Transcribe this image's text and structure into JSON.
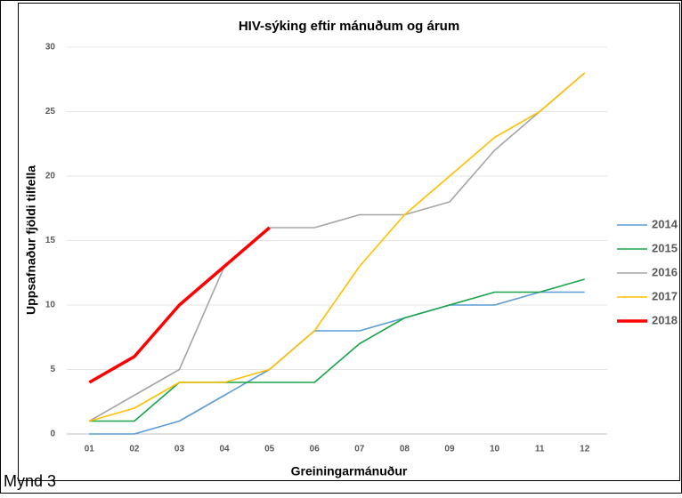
{
  "chart_data": {
    "type": "line",
    "title": "HIV-sýking eftir mánuðum og árum",
    "x_label": "Greiningarmánuður",
    "y_label": "Uppsafnaður fjöldi tilfella",
    "caption": "Mynd 3",
    "categories": [
      "01",
      "02",
      "03",
      "04",
      "05",
      "06",
      "07",
      "08",
      "09",
      "10",
      "11",
      "12"
    ],
    "ylim": [
      0,
      30
    ],
    "yticks": [
      0,
      5,
      10,
      15,
      20,
      25,
      30
    ],
    "grid": true,
    "legend": "right",
    "series": [
      {
        "name": "2014",
        "color": "#5b9bd5",
        "values": [
          0,
          0,
          1,
          3,
          5,
          8,
          8,
          9,
          10,
          10,
          11,
          11
        ]
      },
      {
        "name": "2015",
        "color": "#1aa34a",
        "values": [
          1,
          1,
          4,
          4,
          4,
          4,
          7,
          9,
          10,
          11,
          11,
          12
        ]
      },
      {
        "name": "2016",
        "color": "#a5a5a5",
        "values": [
          1,
          3,
          5,
          13,
          16,
          16,
          17,
          17,
          18,
          22,
          25,
          28
        ]
      },
      {
        "name": "2017",
        "color": "#ffc000",
        "values": [
          1,
          2,
          4,
          4,
          5,
          8,
          13,
          17,
          20,
          23,
          25,
          28
        ]
      },
      {
        "name": "2018",
        "color": "#ff0000",
        "values": [
          4,
          6,
          10,
          13,
          16,
          null,
          null,
          null,
          null,
          null,
          null,
          null
        ]
      }
    ]
  }
}
